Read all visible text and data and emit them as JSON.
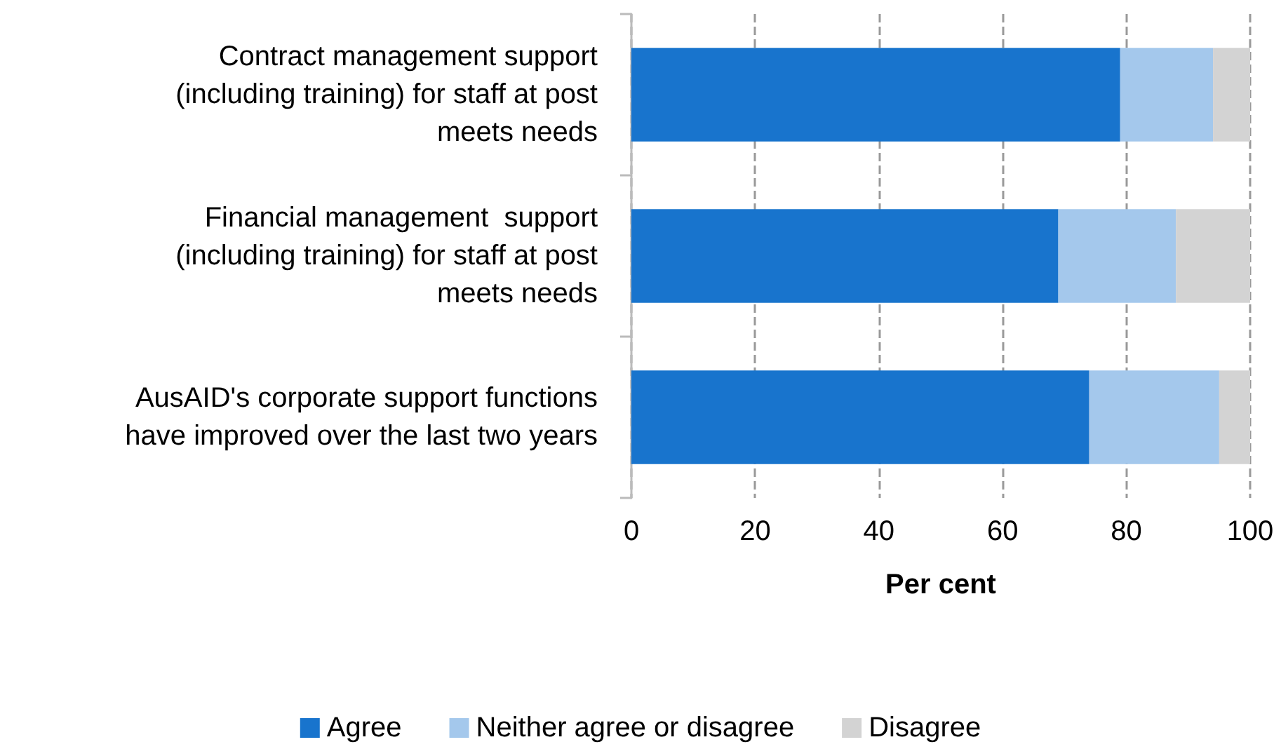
{
  "chart_data": {
    "type": "bar",
    "orientation": "horizontal",
    "stacked": true,
    "xlabel": "Per cent",
    "categories": [
      "Contract management support\n(including training) for staff at post\nmeets needs",
      "Financial management  support\n(including training) for staff at post\nmeets needs",
      "AusAID's corporate support functions\nhave improved over the last two years"
    ],
    "series": [
      {
        "name": "Agree",
        "color": "#1874cd",
        "values": [
          79,
          69,
          74
        ]
      },
      {
        "name": "Neither agree or disagree",
        "color": "#a4c8ec",
        "values": [
          15,
          19,
          21
        ]
      },
      {
        "name": "Disagree",
        "color": "#d3d3d3",
        "values": [
          6,
          12,
          5
        ]
      }
    ],
    "xlim": [
      0,
      100
    ],
    "xticks": [
      0,
      20,
      40,
      60,
      80,
      100
    ],
    "grid": "x",
    "legend": "bottom"
  }
}
